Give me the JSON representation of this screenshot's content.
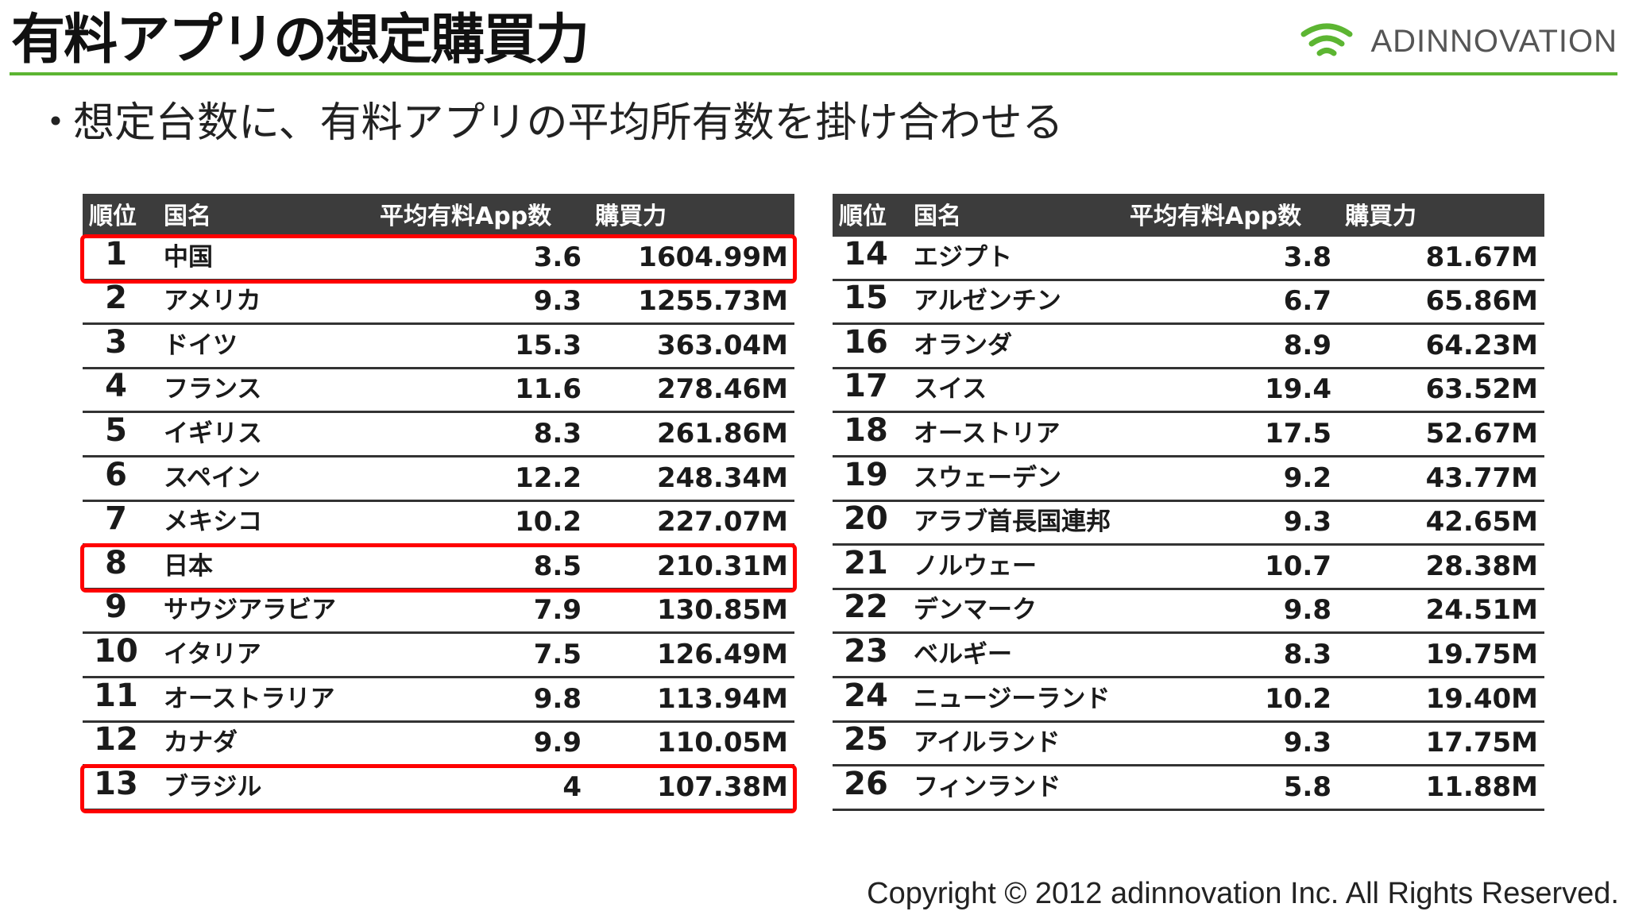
{
  "header": {
    "title": "有料アプリの想定購買力",
    "logo_text": "ADINNOVATION",
    "logo_color": "#5cb532"
  },
  "bullet": {
    "dot": "・",
    "text": "想定台数に、有料アプリの平均所有数を掛け合わせる"
  },
  "table": {
    "columns": [
      "順位",
      "国名",
      "平均有料App数",
      "購買力"
    ],
    "highlight_color": "#ff0000",
    "left_rows": [
      {
        "rank": "1",
        "country": "中国",
        "avg_apps": "3.6",
        "power": "1604.99M",
        "highlighted": true
      },
      {
        "rank": "2",
        "country": "アメリカ",
        "avg_apps": "9.3",
        "power": "1255.73M",
        "highlighted": false
      },
      {
        "rank": "3",
        "country": "ドイツ",
        "avg_apps": "15.3",
        "power": "363.04M",
        "highlighted": false
      },
      {
        "rank": "4",
        "country": "フランス",
        "avg_apps": "11.6",
        "power": "278.46M",
        "highlighted": false
      },
      {
        "rank": "5",
        "country": "イギリス",
        "avg_apps": "8.3",
        "power": "261.86M",
        "highlighted": false
      },
      {
        "rank": "6",
        "country": "スペイン",
        "avg_apps": "12.2",
        "power": "248.34M",
        "highlighted": false
      },
      {
        "rank": "7",
        "country": "メキシコ",
        "avg_apps": "10.2",
        "power": "227.07M",
        "highlighted": false
      },
      {
        "rank": "8",
        "country": "日本",
        "avg_apps": "8.5",
        "power": "210.31M",
        "highlighted": true
      },
      {
        "rank": "9",
        "country": "サウジアラビア",
        "avg_apps": "7.9",
        "power": "130.85M",
        "highlighted": false
      },
      {
        "rank": "10",
        "country": "イタリア",
        "avg_apps": "7.5",
        "power": "126.49M",
        "highlighted": false
      },
      {
        "rank": "11",
        "country": "オーストラリア",
        "avg_apps": "9.8",
        "power": "113.94M",
        "highlighted": false
      },
      {
        "rank": "12",
        "country": "カナダ",
        "avg_apps": "9.9",
        "power": "110.05M",
        "highlighted": false
      },
      {
        "rank": "13",
        "country": "ブラジル",
        "avg_apps": "4",
        "power": "107.38M",
        "highlighted": true
      }
    ],
    "right_rows": [
      {
        "rank": "14",
        "country": "エジプト",
        "avg_apps": "3.8",
        "power": "81.67M",
        "highlighted": false
      },
      {
        "rank": "15",
        "country": "アルゼンチン",
        "avg_apps": "6.7",
        "power": "65.86M",
        "highlighted": false
      },
      {
        "rank": "16",
        "country": "オランダ",
        "avg_apps": "8.9",
        "power": "64.23M",
        "highlighted": false
      },
      {
        "rank": "17",
        "country": "スイス",
        "avg_apps": "19.4",
        "power": "63.52M",
        "highlighted": false
      },
      {
        "rank": "18",
        "country": "オーストリア",
        "avg_apps": "17.5",
        "power": "52.67M",
        "highlighted": false
      },
      {
        "rank": "19",
        "country": "スウェーデン",
        "avg_apps": "9.2",
        "power": "43.77M",
        "highlighted": false
      },
      {
        "rank": "20",
        "country": "アラブ首長国連邦",
        "avg_apps": "9.3",
        "power": "42.65M",
        "highlighted": false
      },
      {
        "rank": "21",
        "country": "ノルウェー",
        "avg_apps": "10.7",
        "power": "28.38M",
        "highlighted": false
      },
      {
        "rank": "22",
        "country": "デンマーク",
        "avg_apps": "9.8",
        "power": "24.51M",
        "highlighted": false
      },
      {
        "rank": "23",
        "country": "ベルギー",
        "avg_apps": "8.3",
        "power": "19.75M",
        "highlighted": false
      },
      {
        "rank": "24",
        "country": "ニュージーランド",
        "avg_apps": "10.2",
        "power": "19.40M",
        "highlighted": false
      },
      {
        "rank": "25",
        "country": "アイルランド",
        "avg_apps": "9.3",
        "power": "17.75M",
        "highlighted": false
      },
      {
        "rank": "26",
        "country": "フィンランド",
        "avg_apps": "5.8",
        "power": "11.88M",
        "highlighted": false
      }
    ]
  },
  "footer": {
    "copyright": "Copyright © 2012  adinnovation Inc. All Rights Reserved."
  }
}
